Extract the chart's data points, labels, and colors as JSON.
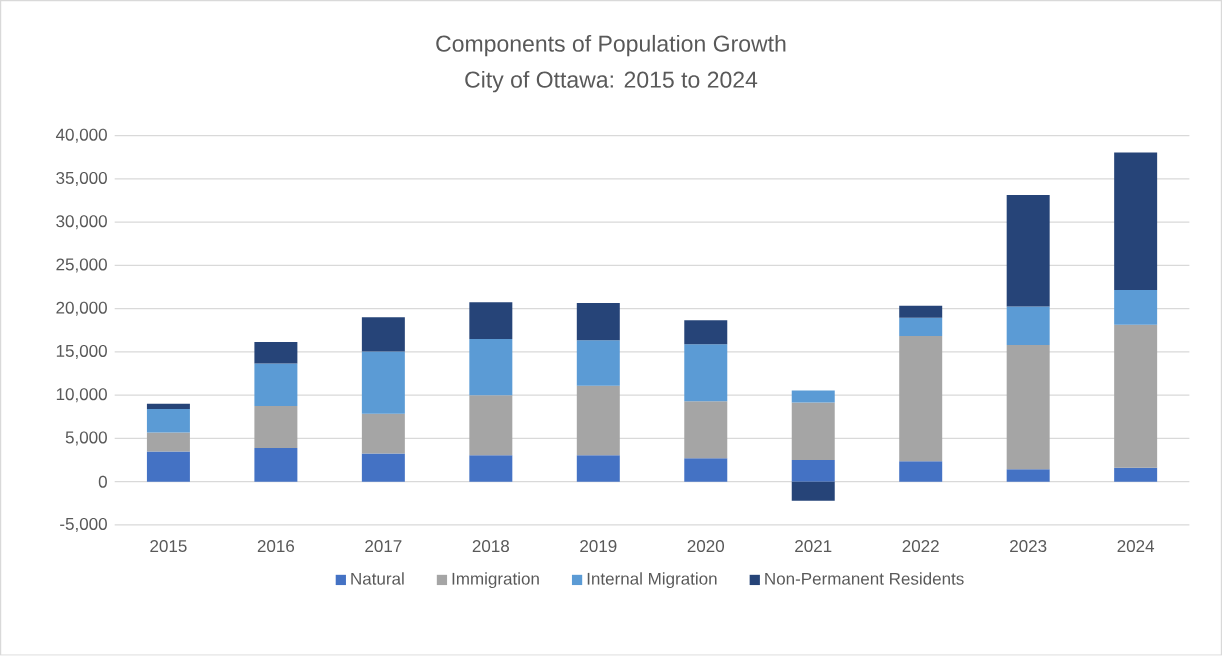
{
  "chart_data": {
    "type": "bar",
    "title": "Components of Population Growth",
    "subtitle": "City of Ottawa: 2015 to 2024",
    "categories": [
      "2015",
      "2016",
      "2017",
      "2018",
      "2019",
      "2020",
      "2021",
      "2022",
      "2023",
      "2024"
    ],
    "stacked": true,
    "series": [
      {
        "name": "Natural",
        "color": "#4472c4",
        "values": [
          3500,
          3900,
          3250,
          3050,
          3050,
          2700,
          2500,
          2350,
          1450,
          1600
        ]
      },
      {
        "name": "Immigration",
        "color": "#a5a5a5",
        "values": [
          2200,
          4850,
          4600,
          6950,
          8050,
          6600,
          6650,
          14500,
          14350,
          16550
        ]
      },
      {
        "name": "Internal Migration",
        "color": "#5b9bd5",
        "values": [
          2700,
          4900,
          7200,
          6500,
          5250,
          6600,
          1400,
          2100,
          4450,
          4000
        ]
      },
      {
        "name": "Non-Permanent Residents",
        "color": "#264478",
        "values": [
          600,
          2500,
          3950,
          4250,
          4300,
          2750,
          -2200,
          1400,
          12900,
          15900
        ]
      }
    ],
    "ylim": [
      -5000,
      40000
    ],
    "yticks": [
      {
        "value": -5000,
        "label": "-5,000"
      },
      0,
      {
        "value": 5000,
        "label": "5,000"
      },
      {
        "value": 10000,
        "label": "10,000"
      },
      {
        "value": 15000,
        "label": "15,000"
      },
      {
        "value": 20000,
        "label": "20,000"
      },
      {
        "value": 25000,
        "label": "25,000"
      },
      {
        "value": 30000,
        "label": "30,000"
      },
      {
        "value": 35000,
        "label": "35,000"
      },
      {
        "value": 40000,
        "label": "40,000"
      }
    ],
    "grid": "y",
    "legend": "bottom"
  }
}
